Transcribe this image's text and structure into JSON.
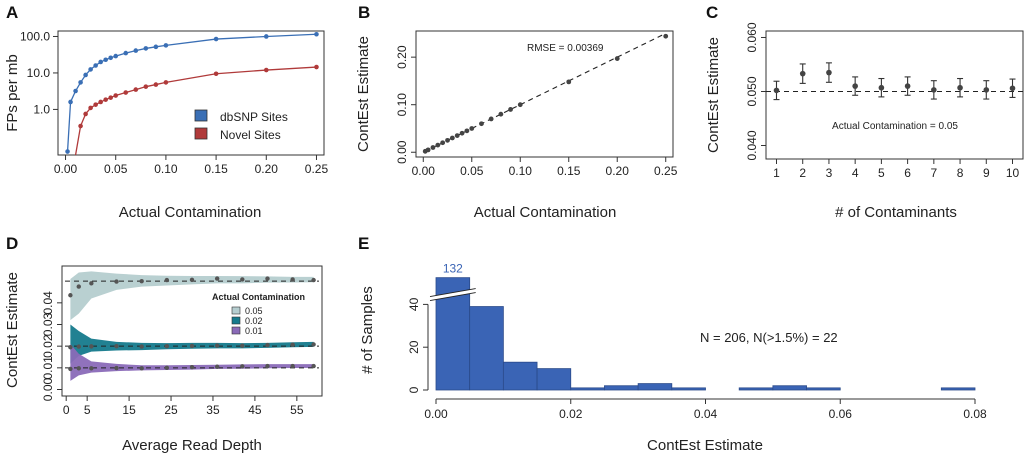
{
  "panels": {
    "A": {
      "label": "A",
      "chart_data": {
        "type": "line",
        "xlabel": "Actual Contamination",
        "ylabel": "FPs per mb",
        "xlim": [
          0,
          0.25
        ],
        "ylim_log10": [
          -1.25,
          2.15
        ],
        "log_y": true,
        "xticks": [
          "0.00",
          "0.05",
          "0.10",
          "0.15",
          "0.20",
          "0.25"
        ],
        "xtick_values": [
          0,
          0.05,
          0.1,
          0.15,
          0.2,
          0.25
        ],
        "yticks": [
          "1.0",
          "10.0",
          "100.0"
        ],
        "ytick_values": [
          1,
          10,
          100
        ],
        "legend_position": "bottom-right",
        "series": [
          {
            "name": "dbSNP Sites",
            "color": "#3a6fb5",
            "x": [
              0.002,
              0.005,
              0.01,
              0.015,
              0.02,
              0.025,
              0.03,
              0.035,
              0.04,
              0.045,
              0.05,
              0.06,
              0.07,
              0.08,
              0.09,
              0.1,
              0.15,
              0.2,
              0.25
            ],
            "y": [
              0.07,
              1.6,
              3.2,
              5.5,
              8.8,
              12.5,
              16,
              20,
              23,
              26,
              29,
              35,
              41,
              47,
              52,
              57,
              85,
              100,
              115
            ]
          },
          {
            "name": "Novel Sites",
            "color": "#b03a3a",
            "x": [
              0.01,
              0.015,
              0.02,
              0.025,
              0.03,
              0.035,
              0.04,
              0.045,
              0.05,
              0.06,
              0.07,
              0.08,
              0.09,
              0.1,
              0.15,
              0.2,
              0.25
            ],
            "y": [
              0.05,
              0.35,
              0.75,
              1.1,
              1.35,
              1.6,
              1.85,
              2.1,
              2.4,
              2.9,
              3.5,
              4.2,
              4.8,
              5.5,
              9.5,
              12,
              14.5
            ]
          }
        ]
      }
    },
    "B": {
      "label": "B",
      "annotation": "RMSE = 0.00369",
      "chart_data": {
        "type": "scatter",
        "xlabel": "Actual Contamination",
        "ylabel": "ContEst Estimate",
        "xlim": [
          0,
          0.25
        ],
        "ylim": [
          0,
          0.25
        ],
        "xticks": [
          "0.00",
          "0.05",
          "0.10",
          "0.15",
          "0.20",
          "0.25"
        ],
        "xtick_values": [
          0,
          0.05,
          0.1,
          0.15,
          0.2,
          0.25
        ],
        "yticks": [
          "0.00",
          "0.10",
          "0.20"
        ],
        "ytick_values": [
          0,
          0.1,
          0.2
        ],
        "x": [
          0.002,
          0.005,
          0.01,
          0.015,
          0.02,
          0.025,
          0.03,
          0.035,
          0.04,
          0.045,
          0.05,
          0.06,
          0.07,
          0.08,
          0.09,
          0.1,
          0.15,
          0.2,
          0.25
        ],
        "y": [
          0.002,
          0.005,
          0.01,
          0.015,
          0.02,
          0.025,
          0.03,
          0.035,
          0.04,
          0.045,
          0.05,
          0.06,
          0.07,
          0.08,
          0.09,
          0.1,
          0.148,
          0.197,
          0.244
        ]
      }
    },
    "C": {
      "label": "C",
      "annotation": "Actual Contamination = 0.05",
      "chart_data": {
        "type": "scatter",
        "xlabel": "# of Contaminants",
        "ylabel": "ContEst Estimate",
        "xlim": [
          0.6,
          10.4
        ],
        "ylim": [
          0.0375,
          0.0612
        ],
        "xticks": [
          "1",
          "2",
          "3",
          "4",
          "5",
          "6",
          "7",
          "8",
          "9",
          "10"
        ],
        "xtick_values": [
          1,
          2,
          3,
          4,
          5,
          6,
          7,
          8,
          9,
          10
        ],
        "yticks": [
          "0.040",
          "0.050",
          "0.060"
        ],
        "ytick_values": [
          0.04,
          0.05,
          0.06
        ],
        "reference_line": 0.05,
        "x": [
          1,
          2,
          3,
          4,
          5,
          6,
          7,
          8,
          9,
          10
        ],
        "y": [
          0.0502,
          0.0533,
          0.0535,
          0.051,
          0.0507,
          0.051,
          0.0503,
          0.0507,
          0.0503,
          0.0506
        ],
        "err": [
          0.0017,
          0.0018,
          0.0018,
          0.0017,
          0.0017,
          0.0017,
          0.0017,
          0.0017,
          0.0017,
          0.0017
        ]
      }
    },
    "D": {
      "label": "D",
      "legend_title": "Actual Contamination",
      "chart_data": {
        "type": "area",
        "xlabel": "Average Read Depth",
        "ylabel": "ContEst Estimate",
        "xlim": [
          -1,
          61
        ],
        "ylim": [
          -0.003,
          0.057
        ],
        "xticks": [
          "0",
          "5",
          "15",
          "25",
          "35",
          "45",
          "55"
        ],
        "xtick_values": [
          0,
          5,
          15,
          25,
          35,
          45,
          55
        ],
        "yticks": [
          "0.00",
          "0.01",
          "0.02",
          "0.03",
          "0.04"
        ],
        "ytick_values": [
          0,
          0.01,
          0.02,
          0.03,
          0.04
        ],
        "legend_position": "top-right",
        "series": [
          {
            "name": "0.05",
            "color": "#b5cdcf",
            "ref": 0.05,
            "x": [
              1,
              3,
              6,
              12,
              18,
              24,
              30,
              36,
              42,
              48,
              54,
              59
            ],
            "y": [
              0.0435,
              0.0475,
              0.049,
              0.0498,
              0.05,
              0.0505,
              0.0506,
              0.0512,
              0.0508,
              0.0512,
              0.0508,
              0.0505
            ],
            "lo": [
              0.032,
              0.035,
              0.042,
              0.046,
              0.0475,
              0.048,
              0.0485,
              0.049,
              0.049,
              0.0493,
              0.0494,
              0.0495
            ],
            "hi": [
              0.051,
              0.054,
              0.0545,
              0.0535,
              0.0528,
              0.0525,
              0.0524,
              0.0524,
              0.0523,
              0.0522,
              0.052,
              0.052
            ]
          },
          {
            "name": "0.02",
            "color": "#157a8c",
            "ref": 0.02,
            "x": [
              1,
              3,
              6,
              12,
              18,
              24,
              30,
              36,
              42,
              48,
              54,
              59
            ],
            "y": [
              0.0195,
              0.0198,
              0.0199,
              0.02,
              0.0198,
              0.02,
              0.0201,
              0.0203,
              0.0202,
              0.0205,
              0.0207,
              0.0208
            ],
            "lo": [
              0.012,
              0.0155,
              0.0175,
              0.018,
              0.0182,
              0.0186,
              0.0188,
              0.019,
              0.019,
              0.0192,
              0.0195,
              0.0197
            ],
            "hi": [
              0.03,
              0.027,
              0.0235,
              0.022,
              0.0215,
              0.0214,
              0.0215,
              0.0215,
              0.0214,
              0.0215,
              0.0218,
              0.022
            ]
          },
          {
            "name": "0.01",
            "color": "#8a6ab8",
            "ref": 0.01,
            "x": [
              1,
              3,
              6,
              12,
              18,
              24,
              30,
              36,
              42,
              48,
              54,
              59
            ],
            "y": [
              0.0095,
              0.0098,
              0.0098,
              0.0099,
              0.0098,
              0.01,
              0.0103,
              0.0105,
              0.0107,
              0.0108,
              0.0108,
              0.0108
            ],
            "lo": [
              0.004,
              0.0065,
              0.0078,
              0.0085,
              0.0088,
              0.009,
              0.0092,
              0.0095,
              0.0096,
              0.0098,
              0.0099,
              0.01
            ],
            "hi": [
              0.021,
              0.0165,
              0.013,
              0.0118,
              0.0112,
              0.0112,
              0.0113,
              0.0114,
              0.0116,
              0.0117,
              0.0117,
              0.0117
            ]
          }
        ]
      }
    },
    "E": {
      "label": "E",
      "annotation": "N = 206, N(>1.5%) = 22",
      "break_label": "132",
      "chart_data": {
        "type": "bar",
        "xlabel": "ContEst Estimate",
        "ylabel": "# of Samples",
        "bar_color": "#3a64b5",
        "xlim": [
          0,
          0.08
        ],
        "ylim": [
          0,
          50
        ],
        "xticks": [
          "0.00",
          "0.02",
          "0.04",
          "0.06",
          "0.08"
        ],
        "xtick_values": [
          0,
          0.02,
          0.04,
          0.06,
          0.08
        ],
        "yticks": [
          "0",
          "20",
          "40"
        ],
        "ytick_values": [
          0,
          20,
          40
        ],
        "bin_edges": [
          0,
          0.005,
          0.01,
          0.015,
          0.02,
          0.025,
          0.03,
          0.035,
          0.04,
          0.045,
          0.05,
          0.055,
          0.06,
          0.065,
          0.07,
          0.075,
          0.08
        ],
        "values": [
          132,
          39,
          13,
          10,
          1,
          2,
          3,
          1,
          0,
          1,
          2,
          1,
          0,
          0,
          0,
          1
        ]
      }
    }
  }
}
